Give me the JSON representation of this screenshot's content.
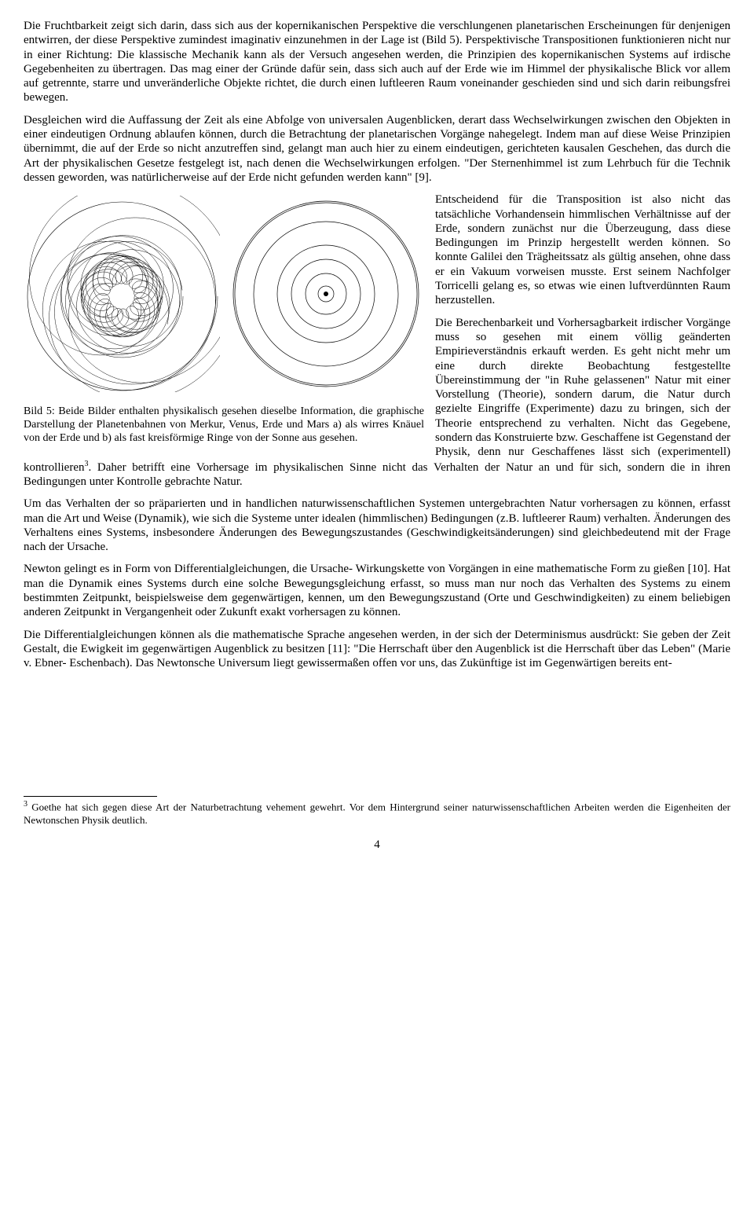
{
  "paragraphs": {
    "p1": "Die Fruchtbarkeit zeigt sich darin, dass sich aus der kopernikanischen Perspektive die verschlungenen planetarischen Erscheinungen für denjenigen entwirren, der diese Perspektive zumindest imaginativ einzunehmen in der Lage ist (Bild 5). Perspektivische Transpositionen funktionieren nicht nur in einer Richtung: Die klassische Mechanik kann als der Versuch angesehen werden, die Prinzipien des kopernikanischen Systems auf irdische Gegebenheiten zu übertragen. Das mag einer der Gründe dafür sein, dass sich auch auf der Erde wie im Himmel der physikalische Blick vor allem auf getrennte, starre und unveränderliche Objekte richtet, die durch einen luftleeren Raum voneinander geschieden sind und sich darin reibungsfrei bewegen.",
    "p2": "Desgleichen wird die Auffassung der Zeit als eine Abfolge von universalen Augenblicken, derart dass Wechselwirkungen zwischen den Objekten in einer eindeutigen Ordnung ablaufen können, durch die Betrachtung der planetarischen Vorgänge nahegelegt. Indem man auf diese Weise Prinzipien übernimmt, die auf der Erde so nicht anzutreffen sind, gelangt man auch hier zu einem eindeutigen, gerichteten kausalen Geschehen, das durch die Art der physikalischen Gesetze festgelegt ist, nach denen die Wechselwirkungen erfolgen. \"Der Sternenhimmel ist zum Lehrbuch für die Technik dessen geworden, was natürlicherweise auf der Erde nicht gefunden werden kann\" [9].",
    "p3": "Entscheidend für die Transposition ist also nicht das tatsächliche Vorhandensein himmlischen Verhältnisse auf der Erde, sondern zunächst nur die Überzeugung, dass diese Bedingungen im Prinzip hergestellt werden können. So konnte Galilei den Trägheitssatz als gültig ansehen, ohne dass er ein Vakuum vorweisen musste. Erst seinem Nachfolger Torricelli gelang es, so etwas wie einen luftverdünnten Raum herzustellen.",
    "p4": "Die Berechenbarkeit und Vorhersagbarkeit irdischer Vorgänge muss so gesehen mit einem völlig geänderten Empirieverständnis erkauft werden. Es geht nicht mehr um eine durch direkte Beobachtung festgestellte Übereinstimmung der \"in Ruhe gelassenen\" Natur mit einer Vorstellung (Theorie), sondern darum, die Natur durch gezielte Eingriffe (Experimente) dazu zu bringen, sich der Theorie entsprechend zu verhalten. Nicht das Gegebene, sondern das Konstruierte bzw. Geschaffene ist Gegenstand der Physik, denn nur Geschaffenes lässt sich (experimentell) kontrollieren",
    "p4b": ". Daher betrifft eine Vorhersage im physikalischen Sinne nicht das Verhalten der Natur an und für sich, sondern die in ihren Bedingungen unter Kontrolle gebrachte Natur.",
    "p5": "Um das Verhalten der so präparierten und in handlichen naturwissenschaftlichen Systemen untergebrachten Natur vorhersagen zu können, erfasst man die Art und Weise (Dynamik), wie sich die Systeme unter idealen (himmlischen) Bedingungen (z.B. luftleerer Raum) verhalten. Änderungen des Verhaltens eines Systems, insbesondere Änderungen des Bewegungszustandes (Geschwindigkeitsänderungen) sind gleichbedeutend mit der Frage nach der Ursache.",
    "p6": "Newton gelingt es in Form von Differentialgleichungen, die Ursache- Wirkungskette von Vorgängen in eine mathematische Form zu gießen [10]. Hat man die Dynamik eines Systems durch eine solche Bewegungsgleichung erfasst, so muss man nur noch das Verhalten des Systems zu einem bestimmten Zeitpunkt, beispielsweise dem gegenwärtigen, kennen, um den Bewegungszustand (Orte und Geschwindigkeiten) zu einem beliebigen anderen Zeitpunkt in Vergangenheit oder Zukunft exakt vorhersagen zu können.",
    "p7": "Die Differentialgleichungen können als die mathematische Sprache angesehen werden, in der sich der Determinismus ausdrückt: Sie geben der Zeit Gestalt, die Ewigkeit im gegenwärtigen Augenblick zu besitzen [11]: \"Die Herrschaft über den Augenblick ist die Herrschaft über das Leben\" (Marie v. Ebner- Eschenbach). Das Newtonsche Universum liegt gewissermaßen offen vor uns, das Zukünftige ist im Gegenwärtigen bereits ent-"
  },
  "figure": {
    "caption": "Bild 5: Beide Bilder enthalten physikalisch gesehen dieselbe Information, die graphische Darstellung der Planetenbahnen von Merkur, Venus, Erde und Mars a) als wirres Knäuel von der Erde und b) als fast kreisförmige Ringe von der Sonne aus gesehen.",
    "stroke_color": "#000000",
    "stroke_width": 0.7,
    "right_orbits_radii": [
      10,
      26,
      44,
      62,
      92,
      116
    ],
    "right_center_dot_r": 3,
    "canvas_size": 250
  },
  "footnote": {
    "marker": "3",
    "text": " Goethe hat sich gegen diese Art der Naturbetrachtung vehement gewehrt. Vor dem Hintergrund seiner naturwissenschaftlichen Arbeiten werden die Eigenheiten der Newtonschen Physik deutlich."
  },
  "page_number": "4"
}
